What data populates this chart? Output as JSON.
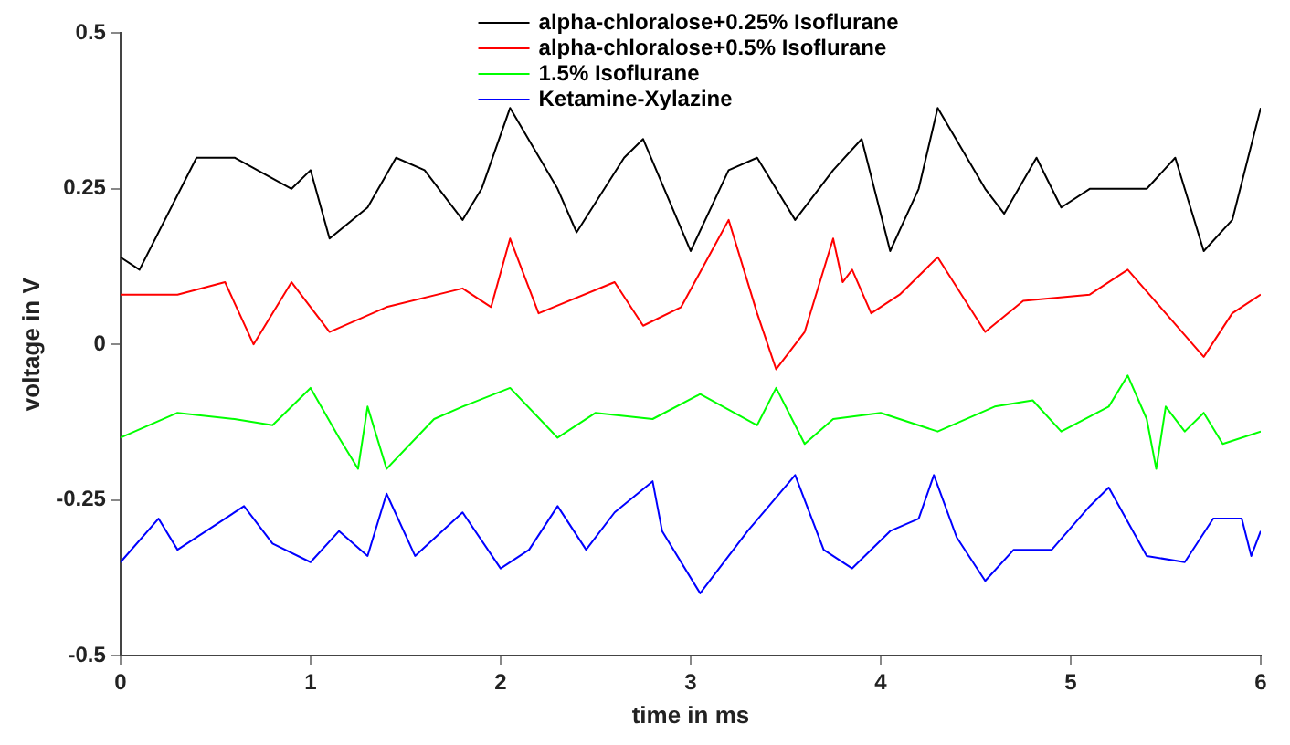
{
  "chart_data": {
    "type": "line",
    "xlabel": "time in ms",
    "ylabel": "voltage in V",
    "xlim": [
      0,
      6
    ],
    "xticks": [
      0,
      1,
      2,
      3,
      4,
      5,
      6
    ],
    "ylim": [
      -0.5,
      0.5
    ],
    "yticks": [
      {
        "value": -0.5,
        "label": "-0.5"
      },
      {
        "value": -0.25,
        "label": "-0.25"
      },
      {
        "value": 0,
        "label": "0"
      },
      {
        "value": 0.25,
        "label": "0.25"
      },
      {
        "value": 0.5,
        "label": "0.5"
      }
    ],
    "grid": false,
    "legend": "top",
    "marker": "none",
    "line_style": "solid",
    "series": [
      {
        "name": "alpha-chloralose+0.25% Isoflurane",
        "color": "#000000",
        "x": [
          0,
          0.1,
          0.4,
          0.6,
          0.9,
          1.0,
          1.1,
          1.3,
          1.45,
          1.6,
          1.8,
          1.9,
          2.05,
          2.3,
          2.4,
          2.65,
          2.75,
          3.0,
          3.2,
          3.35,
          3.55,
          3.75,
          3.9,
          4.05,
          4.2,
          4.3,
          4.55,
          4.65,
          4.82,
          4.95,
          5.1,
          5.4,
          5.55,
          5.7,
          5.85,
          6.0
        ],
        "values": [
          0.14,
          0.12,
          0.3,
          0.3,
          0.25,
          0.28,
          0.17,
          0.22,
          0.3,
          0.28,
          0.2,
          0.25,
          0.38,
          0.25,
          0.18,
          0.3,
          0.33,
          0.15,
          0.28,
          0.3,
          0.2,
          0.28,
          0.33,
          0.15,
          0.25,
          0.38,
          0.25,
          0.21,
          0.3,
          0.22,
          0.25,
          0.25,
          0.3,
          0.15,
          0.2,
          0.38
        ]
      },
      {
        "name": "alpha-chloralose+0.5% Isoflurane",
        "color": "#ff0000",
        "x": [
          0,
          0.3,
          0.55,
          0.7,
          0.9,
          1.1,
          1.4,
          1.8,
          1.95,
          2.05,
          2.2,
          2.6,
          2.75,
          2.95,
          3.2,
          3.35,
          3.45,
          3.6,
          3.75,
          3.8,
          3.85,
          3.95,
          4.1,
          4.3,
          4.55,
          4.75,
          5.1,
          5.3,
          5.5,
          5.7,
          5.85,
          6.0
        ],
        "values": [
          0.08,
          0.08,
          0.1,
          0.0,
          0.1,
          0.02,
          0.06,
          0.09,
          0.06,
          0.17,
          0.05,
          0.1,
          0.03,
          0.06,
          0.2,
          0.05,
          -0.04,
          0.02,
          0.17,
          0.1,
          0.12,
          0.05,
          0.08,
          0.14,
          0.02,
          0.07,
          0.08,
          0.12,
          0.05,
          -0.02,
          0.05,
          0.08
        ]
      },
      {
        "name": "1.5% Isoflurane",
        "color": "#00ff00",
        "x": [
          0,
          0.3,
          0.6,
          0.8,
          1.0,
          1.15,
          1.25,
          1.3,
          1.4,
          1.65,
          1.8,
          2.05,
          2.3,
          2.5,
          2.8,
          3.05,
          3.35,
          3.45,
          3.55,
          3.6,
          3.75,
          4.0,
          4.3,
          4.6,
          4.8,
          4.95,
          5.2,
          5.3,
          5.4,
          5.45,
          5.5,
          5.6,
          5.7,
          5.8,
          6.0
        ],
        "values": [
          -0.15,
          -0.11,
          -0.12,
          -0.13,
          -0.07,
          -0.15,
          -0.2,
          -0.1,
          -0.2,
          -0.12,
          -0.1,
          -0.07,
          -0.15,
          -0.11,
          -0.12,
          -0.08,
          -0.13,
          -0.07,
          -0.13,
          -0.16,
          -0.12,
          -0.11,
          -0.14,
          -0.1,
          -0.09,
          -0.14,
          -0.1,
          -0.05,
          -0.12,
          -0.2,
          -0.1,
          -0.14,
          -0.11,
          -0.16,
          -0.14
        ]
      },
      {
        "name": "Ketamine-Xylazine",
        "color": "#0000ff",
        "x": [
          0,
          0.2,
          0.3,
          0.55,
          0.65,
          0.8,
          1.0,
          1.15,
          1.3,
          1.4,
          1.55,
          1.8,
          2.0,
          2.15,
          2.3,
          2.45,
          2.6,
          2.8,
          2.85,
          3.05,
          3.3,
          3.55,
          3.7,
          3.85,
          4.05,
          4.2,
          4.28,
          4.4,
          4.55,
          4.7,
          4.9,
          5.1,
          5.2,
          5.4,
          5.6,
          5.75,
          5.9,
          5.95,
          6.0
        ],
        "values": [
          -0.35,
          -0.28,
          -0.33,
          -0.28,
          -0.26,
          -0.32,
          -0.35,
          -0.3,
          -0.34,
          -0.24,
          -0.34,
          -0.27,
          -0.36,
          -0.33,
          -0.26,
          -0.33,
          -0.27,
          -0.22,
          -0.3,
          -0.4,
          -0.3,
          -0.21,
          -0.33,
          -0.36,
          -0.3,
          -0.28,
          -0.21,
          -0.31,
          -0.38,
          -0.33,
          -0.33,
          -0.26,
          -0.23,
          -0.34,
          -0.35,
          -0.28,
          -0.28,
          -0.34,
          -0.3
        ]
      }
    ]
  }
}
